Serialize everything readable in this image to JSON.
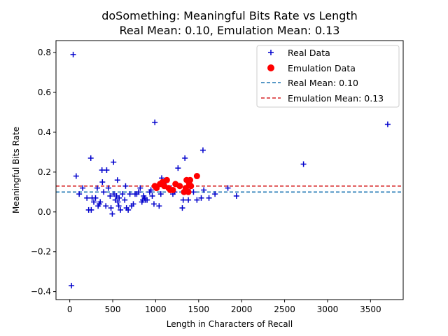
{
  "chart_data": {
    "type": "scatter",
    "title_line1": "doSomething: Meaningful Bits Rate vs Length",
    "title_line2": "Real Mean: 0.10, Emulation Mean: 0.13",
    "xlabel": "Length in Characters of Recall",
    "ylabel": "Meaningful Bits Rate",
    "xlim": [
      -160,
      3880
    ],
    "ylim": [
      -0.44,
      0.86
    ],
    "xticks": [
      0,
      500,
      1000,
      1500,
      2000,
      2500,
      3000,
      3500
    ],
    "yticks": [
      -0.4,
      -0.2,
      0.0,
      0.2,
      0.4,
      0.6,
      0.8
    ],
    "ytick_labels": [
      "−0.4",
      "−0.2",
      "0.0",
      "0.2",
      "0.4",
      "0.6",
      "0.8"
    ],
    "legend_position": "top-right",
    "colors": {
      "real": "#0000cc",
      "emulation": "#ff0000",
      "real_mean": "#1f77b4",
      "emulation_mean": "#d62728"
    },
    "series": [
      {
        "name": "Real Data",
        "marker": "plus",
        "points": [
          [
            40,
            0.79
          ],
          [
            20,
            -0.37
          ],
          [
            75,
            0.18
          ],
          [
            110,
            0.09
          ],
          [
            150,
            0.12
          ],
          [
            200,
            0.07
          ],
          [
            220,
            0.01
          ],
          [
            245,
            0.27
          ],
          [
            250,
            0.01
          ],
          [
            260,
            0.07
          ],
          [
            280,
            0.05
          ],
          [
            300,
            0.07
          ],
          [
            320,
            0.12
          ],
          [
            330,
            0.03
          ],
          [
            345,
            0.04
          ],
          [
            355,
            0.05
          ],
          [
            375,
            0.21
          ],
          [
            380,
            0.15
          ],
          [
            395,
            0.1
          ],
          [
            420,
            0.03
          ],
          [
            430,
            0.21
          ],
          [
            450,
            0.12
          ],
          [
            470,
            0.08
          ],
          [
            480,
            0.02
          ],
          [
            495,
            -0.01
          ],
          [
            510,
            0.25
          ],
          [
            515,
            0.09
          ],
          [
            530,
            0.06
          ],
          [
            545,
            0.08
          ],
          [
            555,
            0.16
          ],
          [
            560,
            0.05
          ],
          [
            570,
            0.03
          ],
          [
            575,
            0.07
          ],
          [
            590,
            0.01
          ],
          [
            615,
            0.09
          ],
          [
            640,
            0.06
          ],
          [
            650,
            0.13
          ],
          [
            660,
            0.02
          ],
          [
            680,
            0.01
          ],
          [
            700,
            0.09
          ],
          [
            720,
            0.03
          ],
          [
            740,
            0.04
          ],
          [
            760,
            0.09
          ],
          [
            780,
            0.09
          ],
          [
            800,
            0.1
          ],
          [
            820,
            0.12
          ],
          [
            840,
            0.05
          ],
          [
            850,
            0.06
          ],
          [
            860,
            0.08
          ],
          [
            870,
            0.07
          ],
          [
            880,
            0.06
          ],
          [
            900,
            0.06
          ],
          [
            930,
            0.1
          ],
          [
            945,
            0.11
          ],
          [
            960,
            0.08
          ],
          [
            980,
            0.04
          ],
          [
            990,
            0.45
          ],
          [
            1000,
            0.12
          ],
          [
            1040,
            0.03
          ],
          [
            1060,
            0.09
          ],
          [
            1070,
            0.17
          ],
          [
            1120,
            0.15
          ],
          [
            1180,
            0.12
          ],
          [
            1200,
            0.09
          ],
          [
            1220,
            0.1
          ],
          [
            1260,
            0.22
          ],
          [
            1310,
            0.02
          ],
          [
            1320,
            0.06
          ],
          [
            1340,
            0.27
          ],
          [
            1360,
            0.12
          ],
          [
            1380,
            0.06
          ],
          [
            1400,
            0.12
          ],
          [
            1440,
            0.1
          ],
          [
            1480,
            0.06
          ],
          [
            1530,
            0.07
          ],
          [
            1550,
            0.31
          ],
          [
            1560,
            0.11
          ],
          [
            1620,
            0.07
          ],
          [
            1690,
            0.09
          ],
          [
            1840,
            0.12
          ],
          [
            1940,
            0.08
          ],
          [
            2720,
            0.24
          ],
          [
            3700,
            0.44
          ]
        ]
      },
      {
        "name": "Emulation Data",
        "marker": "circle",
        "points": [
          [
            990,
            0.13
          ],
          [
            1010,
            0.12
          ],
          [
            1050,
            0.14
          ],
          [
            1080,
            0.15
          ],
          [
            1100,
            0.13
          ],
          [
            1130,
            0.16
          ],
          [
            1150,
            0.12
          ],
          [
            1170,
            0.11
          ],
          [
            1200,
            0.11
          ],
          [
            1230,
            0.14
          ],
          [
            1280,
            0.13
          ],
          [
            1330,
            0.1
          ],
          [
            1350,
            0.12
          ],
          [
            1360,
            0.16
          ],
          [
            1380,
            0.1
          ],
          [
            1390,
            0.14
          ],
          [
            1400,
            0.16
          ],
          [
            1410,
            0.13
          ],
          [
            1480,
            0.18
          ]
        ]
      }
    ],
    "reference_lines": [
      {
        "name": "Real Mean: 0.10",
        "y": 0.1,
        "style": "dashed",
        "color_key": "real_mean"
      },
      {
        "name": "Emulation Mean: 0.13",
        "y": 0.13,
        "style": "dashed",
        "color_key": "emulation_mean"
      }
    ]
  }
}
